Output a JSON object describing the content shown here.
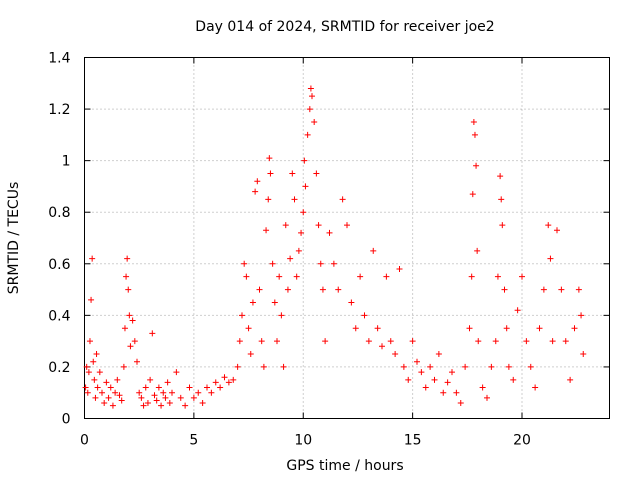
{
  "chart_data": {
    "type": "scatter",
    "title": "Day 014 of 2024, SRMTID for receiver joe2",
    "xlabel": "GPS time / hours",
    "ylabel": "SRMTID / TECUs",
    "xlim": [
      0,
      24
    ],
    "ylim": [
      0,
      1.4
    ],
    "xticks": [
      0,
      5,
      10,
      15,
      20
    ],
    "xtick_labels": [
      "0",
      "5",
      "10",
      "15",
      "20"
    ],
    "yticks": [
      0,
      0.2,
      0.4,
      0.6,
      0.8,
      1.0,
      1.2,
      1.4
    ],
    "ytick_labels": [
      "0",
      "0.2",
      "0.4",
      "0.6",
      "0.8",
      "1",
      "1.2",
      "1.4"
    ],
    "grid": true,
    "marker": "+",
    "color": "#ff0000",
    "series": [
      {
        "name": "SRMTID",
        "points": [
          [
            0.05,
            0.12
          ],
          [
            0.1,
            0.2
          ],
          [
            0.15,
            0.1
          ],
          [
            0.2,
            0.18
          ],
          [
            0.25,
            0.3
          ],
          [
            0.3,
            0.46
          ],
          [
            0.35,
            0.62
          ],
          [
            0.4,
            0.22
          ],
          [
            0.45,
            0.15
          ],
          [
            0.5,
            0.08
          ],
          [
            0.55,
            0.25
          ],
          [
            0.6,
            0.12
          ],
          [
            0.7,
            0.18
          ],
          [
            0.8,
            0.1
          ],
          [
            0.9,
            0.06
          ],
          [
            1.0,
            0.14
          ],
          [
            1.1,
            0.08
          ],
          [
            1.2,
            0.12
          ],
          [
            1.3,
            0.05
          ],
          [
            1.4,
            0.1
          ],
          [
            1.5,
            0.15
          ],
          [
            1.6,
            0.09
          ],
          [
            1.7,
            0.07
          ],
          [
            1.8,
            0.2
          ],
          [
            1.85,
            0.35
          ],
          [
            1.9,
            0.55
          ],
          [
            1.95,
            0.62
          ],
          [
            2.0,
            0.5
          ],
          [
            2.05,
            0.4
          ],
          [
            2.1,
            0.28
          ],
          [
            2.2,
            0.38
          ],
          [
            2.3,
            0.3
          ],
          [
            2.4,
            0.22
          ],
          [
            2.5,
            0.1
          ],
          [
            2.6,
            0.08
          ],
          [
            2.7,
            0.05
          ],
          [
            2.8,
            0.12
          ],
          [
            2.9,
            0.06
          ],
          [
            3.0,
            0.15
          ],
          [
            3.1,
            0.33
          ],
          [
            3.2,
            0.09
          ],
          [
            3.3,
            0.07
          ],
          [
            3.4,
            0.12
          ],
          [
            3.5,
            0.05
          ],
          [
            3.6,
            0.1
          ],
          [
            3.7,
            0.08
          ],
          [
            3.8,
            0.14
          ],
          [
            3.9,
            0.06
          ],
          [
            4.0,
            0.1
          ],
          [
            4.2,
            0.18
          ],
          [
            4.4,
            0.08
          ],
          [
            4.6,
            0.05
          ],
          [
            4.8,
            0.12
          ],
          [
            5.0,
            0.08
          ],
          [
            5.2,
            0.1
          ],
          [
            5.4,
            0.06
          ],
          [
            5.6,
            0.12
          ],
          [
            5.8,
            0.1
          ],
          [
            6.0,
            0.14
          ],
          [
            6.2,
            0.12
          ],
          [
            6.4,
            0.16
          ],
          [
            6.6,
            0.14
          ],
          [
            6.8,
            0.15
          ],
          [
            7.0,
            0.2
          ],
          [
            7.1,
            0.3
          ],
          [
            7.2,
            0.4
          ],
          [
            7.3,
            0.6
          ],
          [
            7.4,
            0.55
          ],
          [
            7.5,
            0.35
          ],
          [
            7.6,
            0.25
          ],
          [
            7.7,
            0.45
          ],
          [
            7.8,
            0.88
          ],
          [
            7.9,
            0.92
          ],
          [
            8.0,
            0.5
          ],
          [
            8.1,
            0.3
          ],
          [
            8.2,
            0.2
          ],
          [
            8.3,
            0.73
          ],
          [
            8.4,
            0.85
          ],
          [
            8.45,
            1.01
          ],
          [
            8.5,
            0.95
          ],
          [
            8.6,
            0.6
          ],
          [
            8.7,
            0.45
          ],
          [
            8.8,
            0.3
          ],
          [
            8.9,
            0.55
          ],
          [
            9.0,
            0.4
          ],
          [
            9.1,
            0.2
          ],
          [
            9.2,
            0.75
          ],
          [
            9.3,
            0.5
          ],
          [
            9.4,
            0.62
          ],
          [
            9.5,
            0.95
          ],
          [
            9.6,
            0.85
          ],
          [
            9.7,
            0.55
          ],
          [
            9.8,
            0.65
          ],
          [
            9.9,
            0.72
          ],
          [
            10.0,
            0.8
          ],
          [
            10.05,
            1.0
          ],
          [
            10.1,
            0.9
          ],
          [
            10.2,
            1.1
          ],
          [
            10.3,
            1.2
          ],
          [
            10.35,
            1.28
          ],
          [
            10.4,
            1.25
          ],
          [
            10.5,
            1.15
          ],
          [
            10.6,
            0.95
          ],
          [
            10.7,
            0.75
          ],
          [
            10.8,
            0.6
          ],
          [
            10.9,
            0.5
          ],
          [
            11.0,
            0.3
          ],
          [
            11.2,
            0.72
          ],
          [
            11.4,
            0.6
          ],
          [
            11.6,
            0.5
          ],
          [
            11.8,
            0.85
          ],
          [
            12.0,
            0.75
          ],
          [
            12.2,
            0.45
          ],
          [
            12.4,
            0.35
          ],
          [
            12.6,
            0.55
          ],
          [
            12.8,
            0.4
          ],
          [
            13.0,
            0.3
          ],
          [
            13.2,
            0.65
          ],
          [
            13.4,
            0.35
          ],
          [
            13.6,
            0.28
          ],
          [
            13.8,
            0.55
          ],
          [
            14.0,
            0.3
          ],
          [
            14.2,
            0.25
          ],
          [
            14.4,
            0.58
          ],
          [
            14.6,
            0.2
          ],
          [
            14.8,
            0.15
          ],
          [
            15.0,
            0.3
          ],
          [
            15.2,
            0.22
          ],
          [
            15.4,
            0.18
          ],
          [
            15.6,
            0.12
          ],
          [
            15.8,
            0.2
          ],
          [
            16.0,
            0.15
          ],
          [
            16.2,
            0.25
          ],
          [
            16.4,
            0.1
          ],
          [
            16.6,
            0.14
          ],
          [
            16.8,
            0.18
          ],
          [
            17.0,
            0.1
          ],
          [
            17.2,
            0.06
          ],
          [
            17.4,
            0.2
          ],
          [
            17.6,
            0.35
          ],
          [
            17.7,
            0.55
          ],
          [
            17.75,
            0.87
          ],
          [
            17.8,
            1.15
          ],
          [
            17.85,
            1.1
          ],
          [
            17.9,
            0.98
          ],
          [
            17.95,
            0.65
          ],
          [
            18.0,
            0.3
          ],
          [
            18.2,
            0.12
          ],
          [
            18.4,
            0.08
          ],
          [
            18.6,
            0.2
          ],
          [
            18.8,
            0.3
          ],
          [
            18.9,
            0.55
          ],
          [
            19.0,
            0.94
          ],
          [
            19.05,
            0.85
          ],
          [
            19.1,
            0.75
          ],
          [
            19.2,
            0.5
          ],
          [
            19.3,
            0.35
          ],
          [
            19.4,
            0.2
          ],
          [
            19.6,
            0.15
          ],
          [
            19.8,
            0.42
          ],
          [
            20.0,
            0.55
          ],
          [
            20.2,
            0.3
          ],
          [
            20.4,
            0.2
          ],
          [
            20.6,
            0.12
          ],
          [
            20.8,
            0.35
          ],
          [
            21.0,
            0.5
          ],
          [
            21.2,
            0.75
          ],
          [
            21.3,
            0.62
          ],
          [
            21.4,
            0.3
          ],
          [
            21.6,
            0.73
          ],
          [
            21.8,
            0.5
          ],
          [
            22.0,
            0.3
          ],
          [
            22.2,
            0.15
          ],
          [
            22.4,
            0.35
          ],
          [
            22.6,
            0.5
          ],
          [
            22.7,
            0.4
          ],
          [
            22.8,
            0.25
          ]
        ]
      }
    ]
  }
}
